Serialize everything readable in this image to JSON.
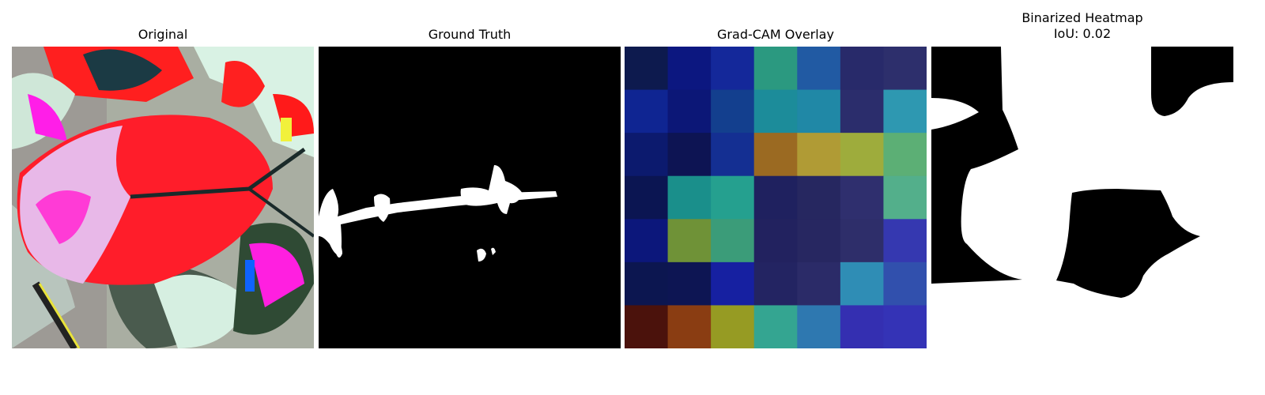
{
  "figure": {
    "panels": [
      {
        "title": "Original"
      },
      {
        "title": "Ground Truth"
      },
      {
        "title": "Grad-CAM Overlay"
      },
      {
        "title_line1": "Binarized Heatmap",
        "title_line2": "IoU: 0.02"
      }
    ]
  },
  "gradcam_grid": {
    "rows": 7,
    "cols": 7,
    "colors": [
      [
        "#0d1a4e",
        "#0c1780",
        "#14289a",
        "#2b9980",
        "#215aa3",
        "#282a6a",
        "#2d2f6c"
      ],
      [
        "#0f2592",
        "#0c1777",
        "#133f8e",
        "#1c8c9a",
        "#2088a6",
        "#2b2d6c",
        "#2e98b1"
      ],
      [
        "#0c1a6e",
        "#0d1453",
        "#142f92",
        "#9b6a22",
        "#b09b35",
        "#9eac3c",
        "#5caf75"
      ],
      [
        "#0b1552",
        "#1a8f8b",
        "#25a08f",
        "#1f215f",
        "#262760",
        "#2f2f6e",
        "#53af8b"
      ],
      [
        "#0c177b",
        "#6f9237",
        "#3b9c79",
        "#22225f",
        "#272761",
        "#2e2e6a",
        "#3538b0"
      ],
      [
        "#0c1650",
        "#0d1553",
        "#1620a1",
        "#232462",
        "#2b2b68",
        "#2f8db5",
        "#3150ad"
      ],
      [
        "#4b120c",
        "#8a3d12",
        "#969b23",
        "#34a591",
        "#2e78b0",
        "#342fb1",
        "#3433b6"
      ]
    ]
  },
  "colors": {
    "background": "#ffffff",
    "mask_fg": "#ffffff",
    "mask_bg": "#000000"
  }
}
